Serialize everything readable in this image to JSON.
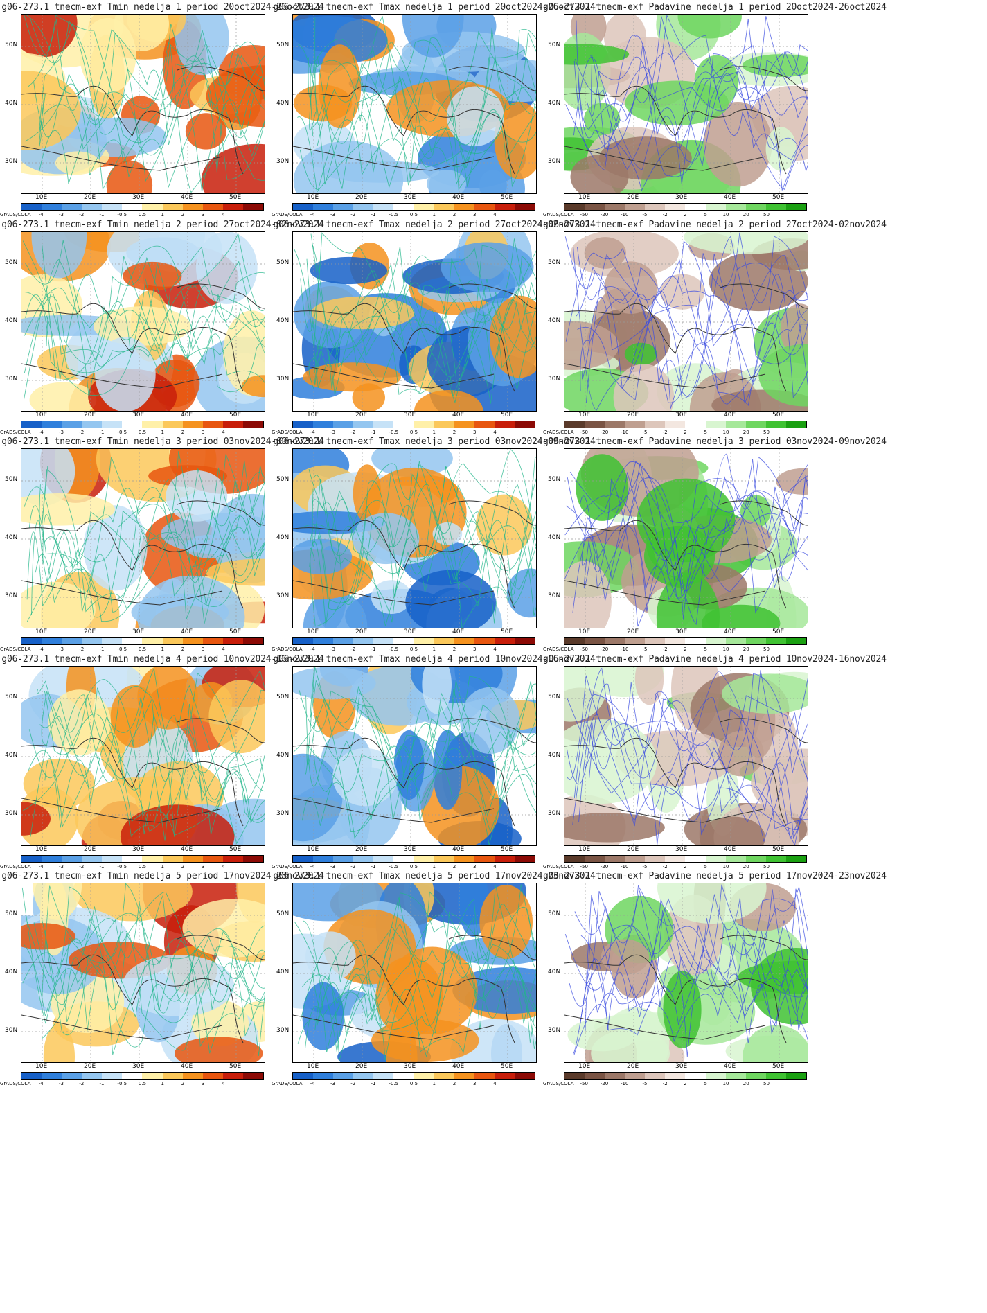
{
  "panels": [
    {
      "title": "g06-273.1 tnecm-exf Tmin nedelja 1 period 20oct2024-26oct2024",
      "variable": "Tmin",
      "week": 1
    },
    {
      "title": "g06-273.1 tnecm-exf Tmax nedelja 1 period 20oct2024-26oct2024",
      "variable": "Tmax",
      "week": 1
    },
    {
      "title": "g06-273.1 tnecm-exf Padavine nedelja 1 period 20oct2024-26oct2024",
      "variable": "Padavine",
      "week": 1
    },
    {
      "title": "g06-273.1 tnecm-exf Tmin nedelja 2 period 27oct2024-02nov2024",
      "variable": "Tmin",
      "week": 2
    },
    {
      "title": "g06-273.1 tnecm-exf Tmax nedelja 2 period 27oct2024-02nov2024",
      "variable": "Tmax",
      "week": 2
    },
    {
      "title": "g06-273.1 tnecm-exf Padavine nedelja 2 period 27oct2024-02nov2024",
      "variable": "Padavine",
      "week": 2
    },
    {
      "title": "g06-273.1 tnecm-exf Tmin nedelja 3 period 03nov2024-09nov2024",
      "variable": "Tmin",
      "week": 3
    },
    {
      "title": "g06-273.1 tnecm-exf Tmax nedelja 3 period 03nov2024-09nov2024",
      "variable": "Tmax",
      "week": 3
    },
    {
      "title": "g06-273.1 tnecm-exf Padavine nedelja 3 period 03nov2024-09nov2024",
      "variable": "Padavine",
      "week": 3
    },
    {
      "title": "g06-273.1 tnecm-exf Tmin nedelja 4 period 10nov2024-16nov2024",
      "variable": "Tmin",
      "week": 4
    },
    {
      "title": "g06-273.1 tnecm-exf Tmax nedelja 4 period 10nov2024-16nov2024",
      "variable": "Tmax",
      "week": 4
    },
    {
      "title": "g06-273.1 tnecm-exf Padavine nedelja 4 period 10nov2024-16nov2024",
      "variable": "Padavine",
      "week": 4
    },
    {
      "title": "g06-273.1 tnecm-exf Tmin nedelja 5 period 17nov2024-23nov2024",
      "variable": "Tmin",
      "week": 5
    },
    {
      "title": "g06-273.1 tnecm-exf Tmax nedelja 5 period 17nov2024-23nov2024",
      "variable": "Tmax",
      "week": 5
    },
    {
      "title": "g06-273.1 tnecm-exf Padavine nedelja 5 period 17nov2024-23nov2024",
      "variable": "Padavine",
      "week": 5
    }
  ],
  "axes": {
    "lat_labels": [
      "50N",
      "40N",
      "30N"
    ],
    "lon_labels": [
      "10E",
      "20E",
      "30E",
      "40E",
      "50E"
    ]
  },
  "colorbars": {
    "credit": "GrADS/COLA",
    "temp_ticks": [
      "-4",
      "-3",
      "-2",
      "-1",
      "-0.5",
      "0.5",
      "1",
      "2",
      "3",
      "4"
    ],
    "temp_colors": [
      "#1660c8",
      "#2f7fdc",
      "#5aa0e6",
      "#94c6f0",
      "#c6e2f7",
      "#ffffff",
      "#fff0a8",
      "#fbc85a",
      "#f5921e",
      "#e8560f",
      "#c81e0a",
      "#8c0a05"
    ],
    "precip_ticks": [
      "-50",
      "-20",
      "-10",
      "-5",
      "-2",
      "2",
      "5",
      "10",
      "20",
      "50"
    ],
    "precip_colors": [
      "#5a3a2a",
      "#7a5444",
      "#9c7868",
      "#bf9f90",
      "#ddc6bb",
      "#f3e7e0",
      "#ffffff",
      "#d8f5d0",
      "#a6e89a",
      "#6fd660",
      "#3fc232",
      "#1aa011"
    ]
  }
}
